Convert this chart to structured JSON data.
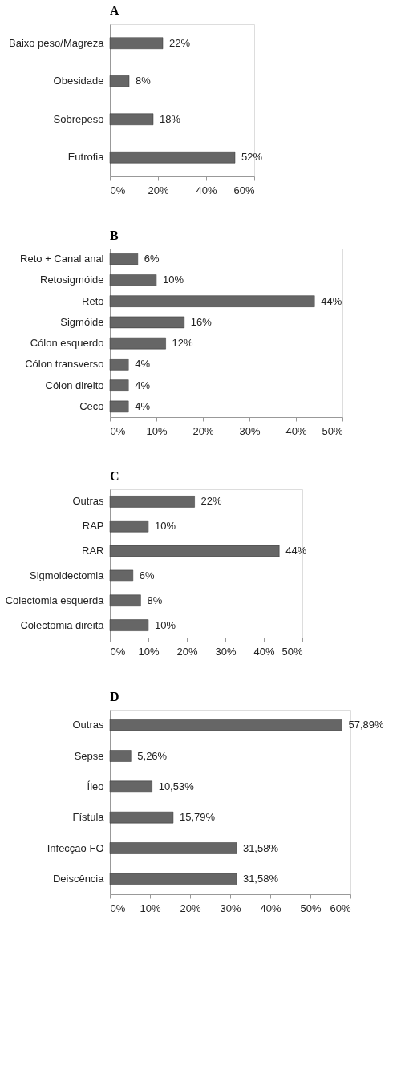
{
  "chart_data": [
    {
      "type": "bar",
      "orientation": "horizontal",
      "title": "A",
      "categories": [
        "Baixo peso/Magreza",
        "Obesidade",
        "Sobrepeso",
        "Eutrofia"
      ],
      "values": [
        22,
        8,
        18,
        52
      ],
      "value_labels": [
        "22%",
        "8%",
        "18%",
        "52%"
      ],
      "color": "#666666",
      "xlim": [
        0,
        60
      ],
      "xticks": [
        {
          "value": 0,
          "label": "0%"
        },
        {
          "value": 20,
          "label": "20%"
        },
        {
          "value": 40,
          "label": "40%"
        },
        {
          "value": 60,
          "label": "60%"
        }
      ],
      "grid": false
    },
    {
      "type": "bar",
      "orientation": "horizontal",
      "title": "B",
      "categories": [
        "Reto + Canal anal",
        "Retosigmóide",
        "Reto",
        "Sigmóide",
        "Cólon esquerdo",
        "Cólon transverso",
        "Cólon direito",
        "Ceco"
      ],
      "values": [
        6,
        10,
        44,
        16,
        12,
        4,
        4,
        4
      ],
      "value_labels": [
        "6%",
        "10%",
        "44%",
        "16%",
        "12%",
        "4%",
        "4%",
        "4%"
      ],
      "color": "#666666",
      "xlim": [
        0,
        50
      ],
      "xticks": [
        {
          "value": 0,
          "label": "0%"
        },
        {
          "value": 10,
          "label": "10%"
        },
        {
          "value": 20,
          "label": "20%"
        },
        {
          "value": 30,
          "label": "30%"
        },
        {
          "value": 40,
          "label": "40%"
        },
        {
          "value": 50,
          "label": "50%"
        }
      ],
      "grid": false
    },
    {
      "type": "bar",
      "orientation": "horizontal",
      "title": "C",
      "categories": [
        "Outras",
        "RAP",
        "RAR",
        "Sigmoidectomia",
        "Colectomia esquerda",
        "Colectomia direita"
      ],
      "values": [
        22,
        10,
        44,
        6,
        8,
        10
      ],
      "value_labels": [
        "22%",
        "10%",
        "44%",
        "6%",
        "8%",
        "10%"
      ],
      "color": "#666666",
      "xlim": [
        0,
        50
      ],
      "xticks": [
        {
          "value": 0,
          "label": "0%"
        },
        {
          "value": 10,
          "label": "10%"
        },
        {
          "value": 20,
          "label": "20%"
        },
        {
          "value": 30,
          "label": "30%"
        },
        {
          "value": 40,
          "label": "40%"
        },
        {
          "value": 50,
          "label": "50%"
        }
      ],
      "grid": false
    },
    {
      "type": "bar",
      "orientation": "horizontal",
      "title": "D",
      "categories": [
        "Outras",
        "Sepse",
        "Íleo",
        "Fístula",
        "Infecção FO",
        "Deiscência"
      ],
      "values": [
        57.89,
        5.26,
        10.53,
        15.79,
        31.58,
        31.58
      ],
      "value_labels": [
        "57,89%",
        "5,26%",
        "10,53%",
        "15,79%",
        "31,58%",
        "31,58%"
      ],
      "color": "#666666",
      "xlim": [
        0,
        60
      ],
      "xticks": [
        {
          "value": 0,
          "label": "0%"
        },
        {
          "value": 10,
          "label": "10%"
        },
        {
          "value": 20,
          "label": "20%"
        },
        {
          "value": 30,
          "label": "30%"
        },
        {
          "value": 40,
          "label": "40%"
        },
        {
          "value": 50,
          "label": "50%"
        },
        {
          "value": 60,
          "label": "60%"
        }
      ],
      "grid": false
    }
  ]
}
